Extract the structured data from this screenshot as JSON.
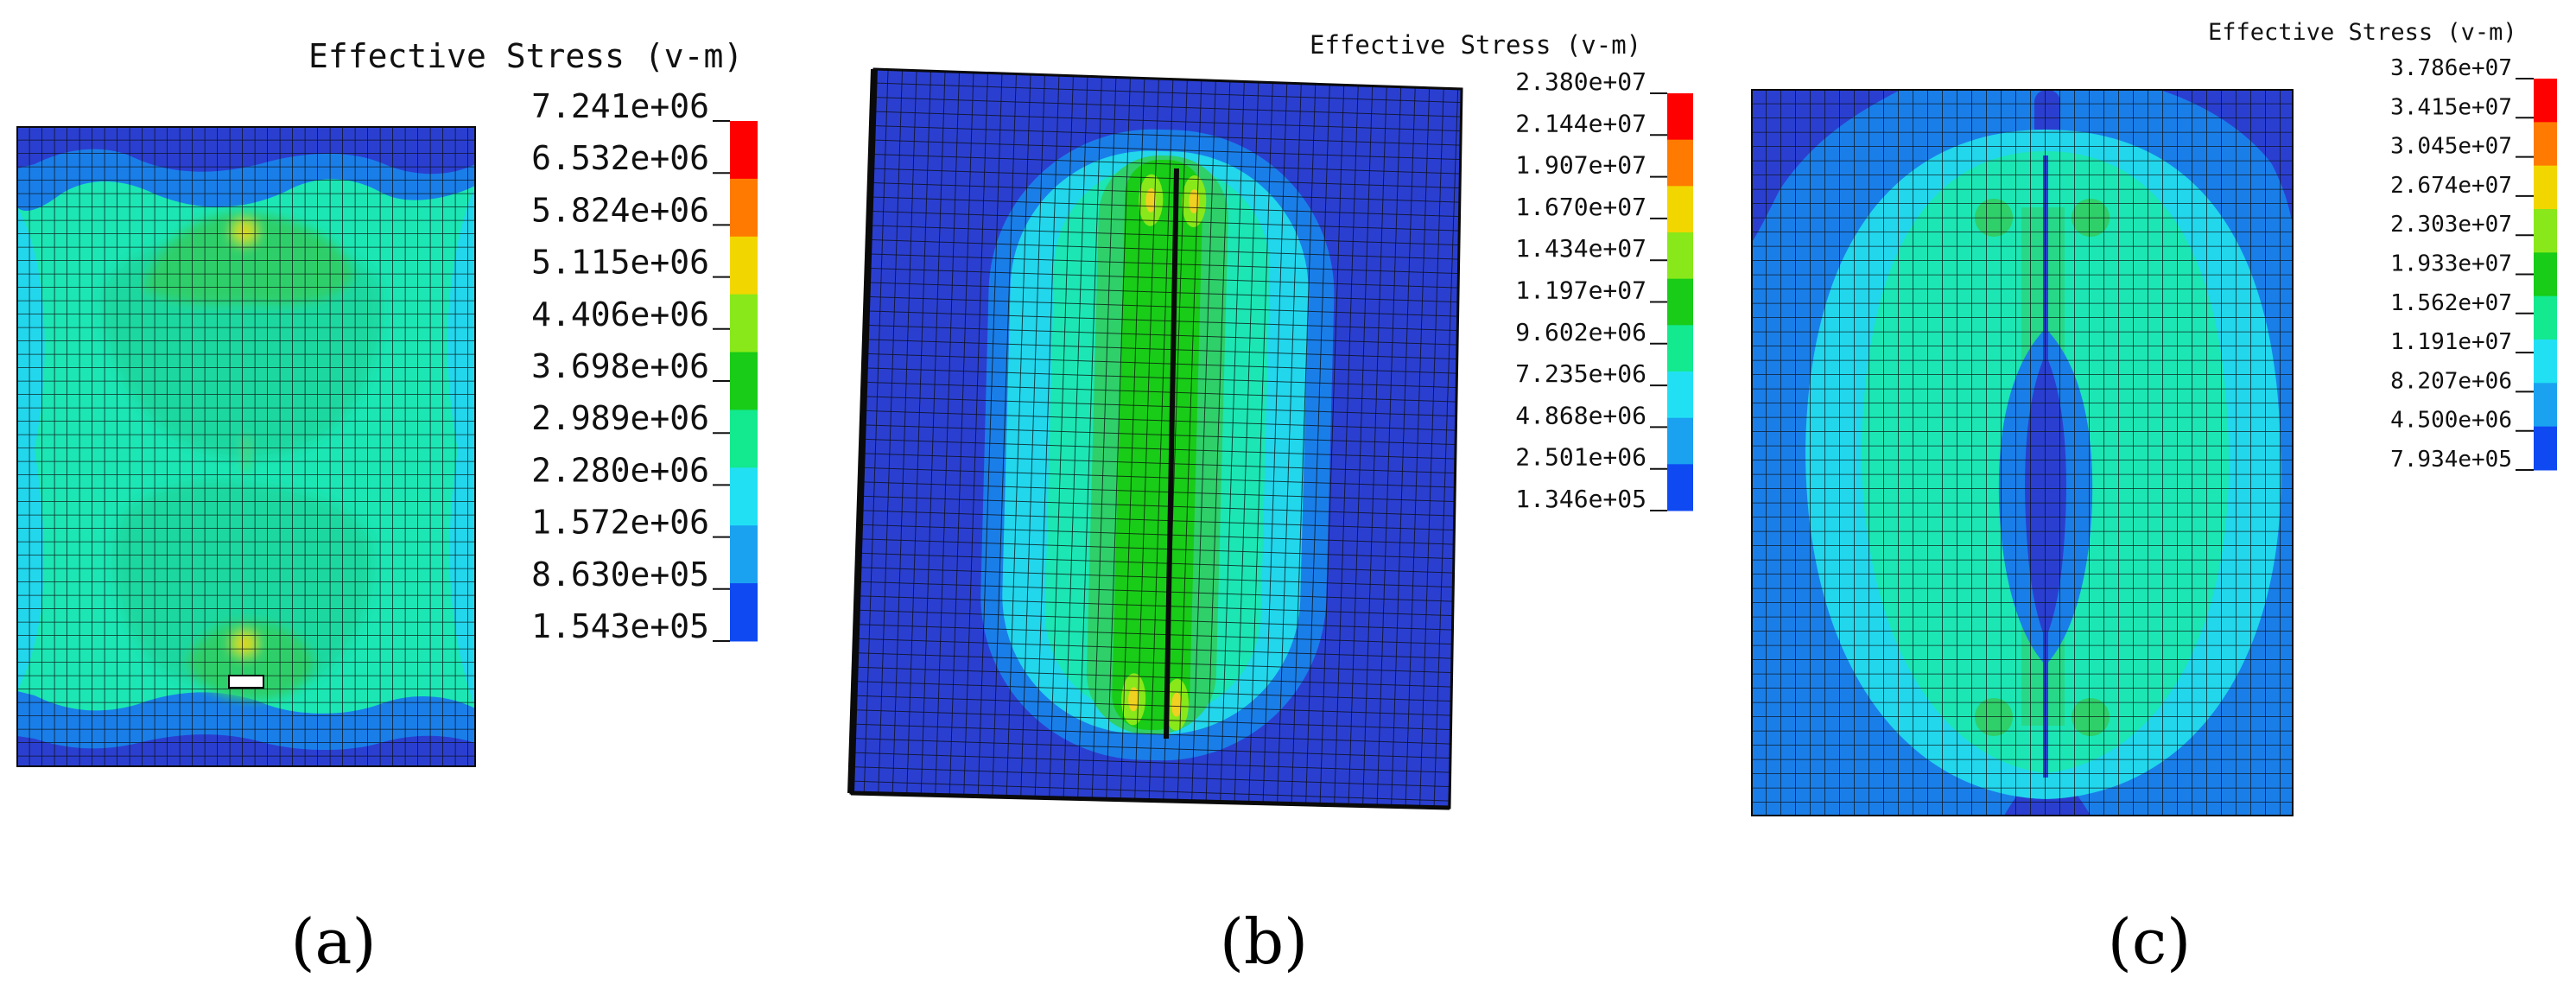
{
  "figure": {
    "panels": [
      {
        "id": "a",
        "label": "(a)",
        "legend": {
          "title": "Effective Stress (v-m)",
          "values": [
            "7.241e+06",
            "6.532e+06",
            "5.824e+06",
            "5.115e+06",
            "4.406e+06",
            "3.698e+06",
            "2.989e+06",
            "2.280e+06",
            "1.572e+06",
            "8.630e+05",
            "1.543e+05"
          ]
        }
      },
      {
        "id": "b",
        "label": "(b)",
        "legend": {
          "title": "Effective Stress (v-m)",
          "values": [
            "2.380e+07",
            "2.144e+07",
            "1.907e+07",
            "1.670e+07",
            "1.434e+07",
            "1.197e+07",
            "9.602e+06",
            "7.235e+06",
            "4.868e+06",
            "2.501e+06",
            "1.346e+05"
          ]
        }
      },
      {
        "id": "c",
        "label": "(c)",
        "legend": {
          "title": "Effective Stress (v-m)",
          "values": [
            "3.786e+07",
            "3.415e+07",
            "3.045e+07",
            "2.674e+07",
            "2.303e+07",
            "1.933e+07",
            "1.562e+07",
            "1.191e+07",
            "8.207e+06",
            "4.500e+06",
            "7.934e+05"
          ]
        }
      }
    ],
    "colormap": [
      "#ff0000",
      "#ff7a00",
      "#f2d600",
      "#88e81a",
      "#18cc18",
      "#13e98e",
      "#22e0f4",
      "#1aa2f0",
      "#0f49f2"
    ],
    "colors": {
      "c0": "#2a3fd0",
      "c1": "#1a7ee8",
      "c2": "#22d6ec",
      "c3": "#1ce6b4",
      "c4": "#2fcf6a",
      "c5": "#5fd62a",
      "hot": "#f0d020",
      "mesh": "#0a0a0a"
    }
  }
}
